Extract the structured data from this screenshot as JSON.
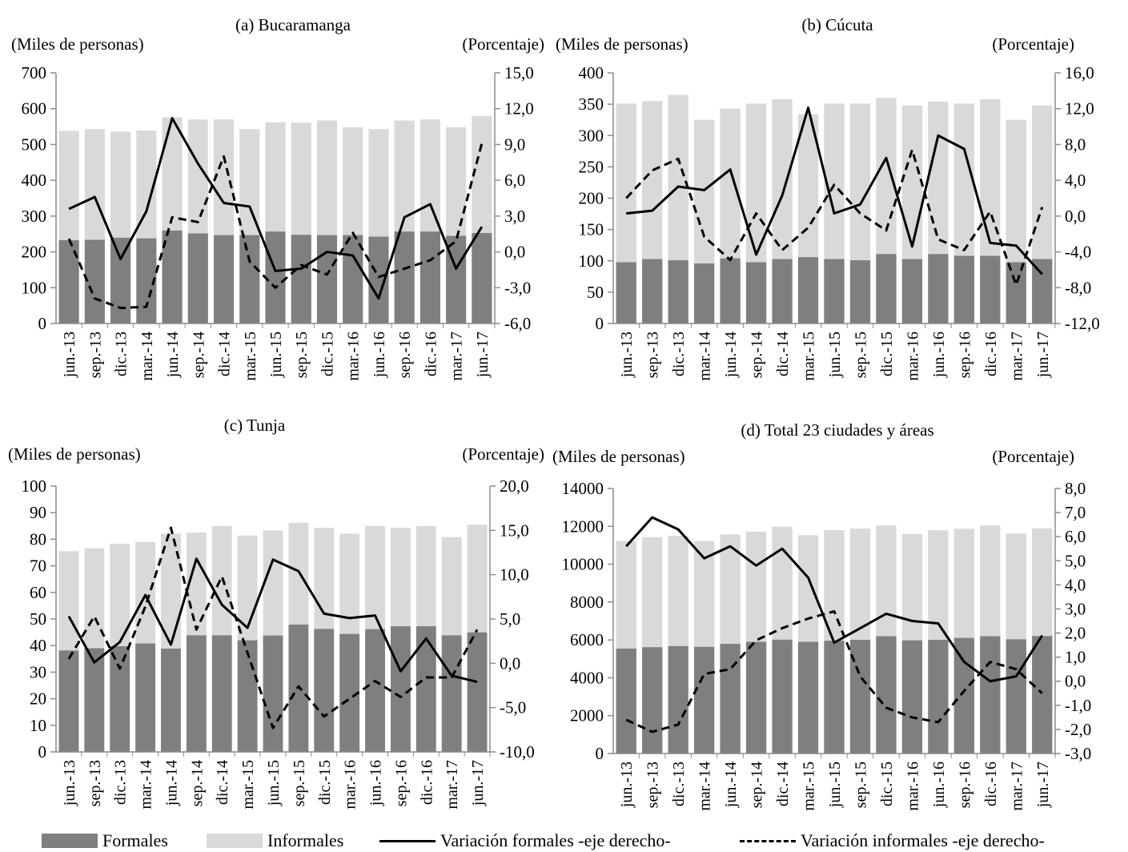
{
  "chart_data": [
    {
      "type": "bar",
      "title": "(a) Bucaramanga",
      "ylabel_left": "(Miles de personas)",
      "ylabel_right": "(Porcentaje)",
      "categories": [
        "jun.-13",
        "sep.-13",
        "dic.-13",
        "mar.-14",
        "jun.-14",
        "sep.-14",
        "dic.-14",
        "mar.-15",
        "jun.-15",
        "sep.-15",
        "dic.-15",
        "mar.-16",
        "jun.-16",
        "sep.-16",
        "dic.-16",
        "mar.-17",
        "jun.-17"
      ],
      "ylim_left": [
        0,
        700
      ],
      "yticks_left": [
        "0",
        "100",
        "200",
        "300",
        "400",
        "500",
        "600",
        "700"
      ],
      "ylim_right": [
        -6,
        15
      ],
      "yticks_right": [
        "-6,0",
        "-3,0",
        "0,0",
        "3,0",
        "6,0",
        "9,0",
        "12,0",
        "15,0"
      ],
      "series": [
        {
          "name": "Formales",
          "kind": "bar",
          "axis": "left",
          "values": [
            233,
            234,
            240,
            238,
            260,
            252,
            247,
            247,
            257,
            248,
            247,
            247,
            243,
            257,
            257,
            245,
            253
          ]
        },
        {
          "name": "Informales",
          "kind": "bar",
          "axis": "left",
          "values": [
            305,
            309,
            296,
            301,
            316,
            318,
            323,
            296,
            305,
            313,
            320,
            301,
            300,
            310,
            313,
            303,
            327
          ]
        },
        {
          "name": "Variación formales -eje derecho-",
          "kind": "line",
          "axis": "right",
          "values": [
            3.6,
            4.6,
            -0.6,
            3.4,
            11.2,
            7.4,
            4.1,
            3.8,
            -1.6,
            -1.4,
            0.0,
            -0.3,
            -3.9,
            2.9,
            4.0,
            -1.4,
            2.1
          ]
        },
        {
          "name": "Variación informales -eje derecho-",
          "kind": "dashed",
          "axis": "right",
          "values": [
            1.1,
            -3.9,
            -4.7,
            -4.6,
            2.9,
            2.5,
            8.0,
            -0.8,
            -3.0,
            -1.1,
            -1.9,
            1.6,
            -2.1,
            -1.4,
            -0.7,
            0.9,
            9.1
          ]
        }
      ]
    },
    {
      "type": "bar",
      "title": "(b) Cúcuta",
      "ylabel_left": "(Miles de personas)",
      "ylabel_right": "(Porcentaje)",
      "categories": [
        "jun.-13",
        "sep.-13",
        "dic.-13",
        "mar.-14",
        "jun.-14",
        "sep.-14",
        "dic.-14",
        "mar.-15",
        "jun.-15",
        "sep.-15",
        "dic.-15",
        "mar.-16",
        "jun.-16",
        "sep.-16",
        "dic.-16",
        "mar.-17",
        "jun.-17"
      ],
      "ylim_left": [
        0,
        400
      ],
      "yticks_left": [
        "0",
        "50",
        "100",
        "150",
        "200",
        "250",
        "300",
        "350",
        "400"
      ],
      "ylim_right": [
        -12,
        16
      ],
      "yticks_right": [
        "-12,0",
        "-8,0",
        "-4,0",
        "0,0",
        "4,0",
        "8,0",
        "12,0",
        "16,0"
      ],
      "series": [
        {
          "name": "Formales",
          "kind": "bar",
          "axis": "left",
          "values": [
            98,
            103,
            101,
            96,
            104,
            98,
            103,
            106,
            103,
            101,
            111,
            103,
            111,
            108,
            108,
            98,
            103
          ]
        },
        {
          "name": "Informales",
          "kind": "bar",
          "axis": "left",
          "values": [
            253,
            252,
            264,
            229,
            239,
            253,
            255,
            228,
            248,
            250,
            249,
            245,
            243,
            243,
            250,
            227,
            245
          ]
        },
        {
          "name": "Variación formales -eje derecho-",
          "kind": "line",
          "axis": "right",
          "values": [
            0.3,
            0.6,
            3.3,
            2.9,
            5.2,
            -4.3,
            2.3,
            12.1,
            0.3,
            1.3,
            6.5,
            -3.4,
            9.0,
            7.5,
            -3.0,
            -3.3,
            -6.5
          ]
        },
        {
          "name": "Variación informales -eje derecho-",
          "kind": "dashed",
          "axis": "right",
          "values": [
            2.0,
            5.1,
            6.4,
            -2.3,
            -4.9,
            0.3,
            -3.8,
            -1.3,
            3.5,
            0.3,
            -1.6,
            7.4,
            -2.6,
            -3.8,
            0.5,
            -7.7,
            1.0
          ]
        }
      ]
    },
    {
      "type": "bar",
      "title": "(c) Tunja",
      "ylabel_left": "(Miles de personas)",
      "ylabel_right": "(Porcentaje)",
      "categories": [
        "jun.-13",
        "sep.-13",
        "dic.-13",
        "mar.-14",
        "jun.-14",
        "sep.-14",
        "dic.-14",
        "mar.-15",
        "jun.-15",
        "sep.-15",
        "dic.-15",
        "mar.-16",
        "jun.-16",
        "sep.-16",
        "dic.-16",
        "mar.-17",
        "jun.-17"
      ],
      "ylim_left": [
        0,
        100
      ],
      "yticks_left": [
        "0",
        "10",
        "20",
        "30",
        "40",
        "50",
        "60",
        "70",
        "80",
        "90",
        "100"
      ],
      "ylim_right": [
        -10,
        20
      ],
      "yticks_right": [
        "-10,0",
        "-5,0",
        "0,0",
        "5,0",
        "10,0",
        "15,0",
        "20,0"
      ],
      "series": [
        {
          "name": "Formales",
          "kind": "bar",
          "axis": "left",
          "values": [
            38.2,
            39.0,
            39.8,
            40.8,
            38.9,
            43.9,
            43.9,
            42.0,
            43.8,
            47.9,
            46.3,
            44.4,
            46.2,
            47.3,
            47.3,
            43.9,
            45.0
          ]
        },
        {
          "name": "Informales",
          "kind": "bar",
          "axis": "left",
          "values": [
            37.3,
            37.6,
            38.5,
            38.2,
            43.2,
            38.6,
            41.1,
            39.4,
            39.5,
            38.3,
            38.0,
            37.7,
            38.8,
            37.0,
            37.7,
            36.9,
            40.5
          ]
        },
        {
          "name": "Variación formales -eje derecho-",
          "kind": "line",
          "axis": "right",
          "values": [
            5.3,
            0.1,
            2.4,
            7.7,
            2.1,
            11.8,
            6.6,
            4.0,
            11.7,
            10.4,
            5.6,
            5.1,
            5.4,
            -0.9,
            2.8,
            -1.4,
            -2.1
          ]
        },
        {
          "name": "Variación informales -eje derecho-",
          "kind": "dashed",
          "axis": "right",
          "values": [
            0.5,
            5.3,
            -0.6,
            6.4,
            15.3,
            3.8,
            9.8,
            1.2,
            -7.3,
            -2.6,
            -6.0,
            -4.0,
            -2.0,
            -3.8,
            -1.6,
            -1.6,
            3.8
          ]
        }
      ]
    },
    {
      "type": "bar",
      "title": "(d) Total 23 ciudades y áreas",
      "ylabel_left": "(Miles de personas)",
      "ylabel_right": "(Porcentaje)",
      "categories": [
        "jun.-13",
        "sep.-13",
        "dic.-13",
        "mar.-14",
        "jun.-14",
        "sep.-14",
        "dic.-14",
        "mar.-15",
        "jun.-15",
        "sep.-15",
        "dic.-15",
        "mar.-16",
        "jun.-16",
        "sep.-16",
        "dic.-16",
        "mar.-17",
        "jun.-17"
      ],
      "ylim_left": [
        0,
        14000
      ],
      "yticks_left": [
        "0",
        "2000",
        "4000",
        "6000",
        "8000",
        "10000",
        "12000",
        "14000"
      ],
      "ylim_right": [
        -3,
        8
      ],
      "yticks_right": [
        "-3,0",
        "-2,0",
        "-1,0",
        "0,0",
        "1,0",
        "2,0",
        "3,0",
        "4,0",
        "5,0",
        "6,0",
        "7,0",
        "8,0"
      ],
      "series": [
        {
          "name": "Formales",
          "kind": "bar",
          "axis": "left",
          "values": [
            5550,
            5620,
            5680,
            5640,
            5800,
            5900,
            6020,
            5900,
            5960,
            6010,
            6200,
            5980,
            6010,
            6110,
            6200,
            6040,
            6210
          ]
        },
        {
          "name": "Informales",
          "kind": "bar",
          "axis": "left",
          "values": [
            5670,
            5810,
            5820,
            5580,
            5770,
            5820,
            5960,
            5630,
            5840,
            5870,
            5850,
            5620,
            5780,
            5760,
            5850,
            5580,
            5680
          ]
        },
        {
          "name": "Variación formales -eje derecho-",
          "kind": "line",
          "axis": "right",
          "values": [
            5.6,
            6.8,
            6.3,
            5.1,
            5.6,
            4.8,
            5.5,
            4.3,
            1.6,
            2.2,
            2.8,
            2.5,
            2.4,
            0.8,
            0.0,
            0.2,
            1.9
          ]
        },
        {
          "name": "Variación informales -eje derecho-",
          "kind": "dashed",
          "axis": "right",
          "values": [
            -1.6,
            -2.1,
            -1.8,
            0.3,
            0.5,
            1.7,
            2.2,
            2.6,
            2.9,
            0.2,
            -1.1,
            -1.5,
            -1.7,
            -0.4,
            0.8,
            0.5,
            -0.5
          ]
        }
      ]
    }
  ],
  "legend": {
    "formales": "Formales",
    "informales": "Informales",
    "var_formales": "Variación formales -eje derecho-",
    "var_informales": "Variación informales -eje derecho-"
  },
  "colors": {
    "formales": "#7f7f7f",
    "informales": "#d9d9d9",
    "line": "#000000",
    "axis": "#8c8c8c"
  }
}
